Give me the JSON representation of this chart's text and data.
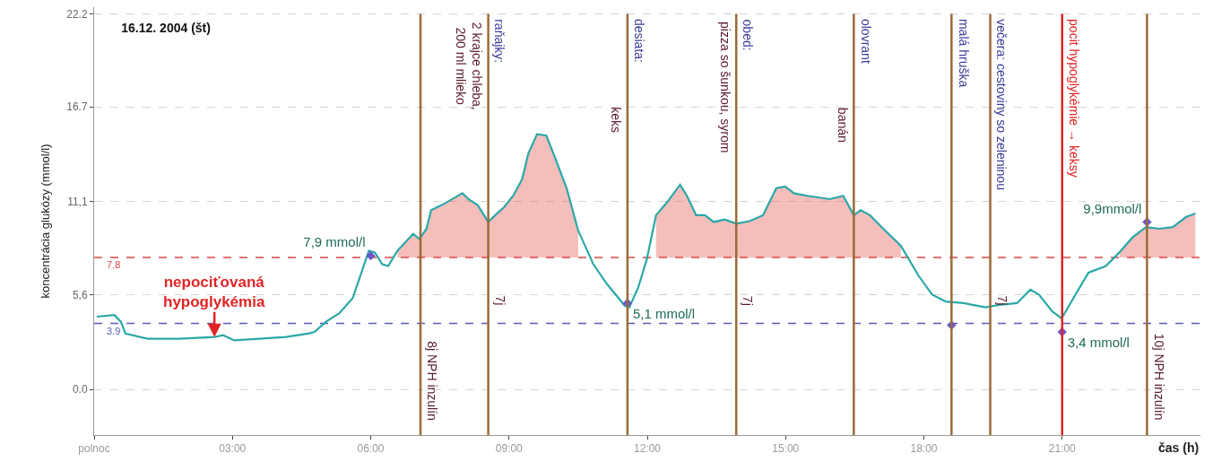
{
  "chart_data": {
    "type": "line",
    "title": "16.12. 2004 (št)",
    "xlabel": "čas (h)",
    "ylabel": "koncentrácia glukózy (mmol/l)",
    "xlim": [
      0,
      24
    ],
    "xticks": [
      {
        "value": 0,
        "label": "polnoc"
      },
      {
        "value": 3,
        "label": "03:00"
      },
      {
        "value": 6,
        "label": "06:00"
      },
      {
        "value": 9,
        "label": "09:00"
      },
      {
        "value": 12,
        "label": "12:00"
      },
      {
        "value": 15,
        "label": "15:00"
      },
      {
        "value": 18,
        "label": "18:00"
      },
      {
        "value": 21,
        "label": "21:00"
      }
    ],
    "ylim": [
      -2.7,
      22.6
    ],
    "yticks": [
      {
        "value": 0,
        "label": "0.0"
      },
      {
        "value": 5.6,
        "label": "5,6"
      },
      {
        "value": 11.1,
        "label": "11,1"
      },
      16.7,
      22.2
    ],
    "grid": "y",
    "marker": "none",
    "line_style": "solid",
    "series": [
      {
        "color": "#2aa8a8",
        "x": [
          0.06,
          0.44,
          0.58,
          0.68,
          1.16,
          1.84,
          2.61,
          2.8,
          3.04,
          3.58,
          4.16,
          4.64,
          4.78,
          5.03,
          5.32,
          5.61,
          5.86,
          5.96,
          6.09,
          6.25,
          6.38,
          6.58,
          6.77,
          6.92,
          7.06,
          7.21,
          7.31,
          7.54,
          7.83,
          7.99,
          8.12,
          8.32,
          8.55,
          8.7,
          8.9,
          9.09,
          9.28,
          9.42,
          9.61,
          9.81,
          10.0,
          10.25,
          10.5,
          10.83,
          11.12,
          11.51,
          11.61,
          11.8,
          11.99,
          12.19,
          12.44,
          12.71,
          12.86,
          13.06,
          13.25,
          13.44,
          13.68,
          13.93,
          14.22,
          14.51,
          14.8,
          14.99,
          15.18,
          15.47,
          15.96,
          16.25,
          16.48,
          16.63,
          16.83,
          17.12,
          17.5,
          17.89,
          18.18,
          18.47,
          18.86,
          19.34,
          19.63,
          20.02,
          20.31,
          20.5,
          20.79,
          20.99,
          21.18,
          21.57,
          21.95,
          22.24,
          22.53,
          22.82,
          23.11,
          23.4,
          23.69,
          23.89
        ],
        "values": [
          4.3,
          4.4,
          4.0,
          3.3,
          3.0,
          3.0,
          3.1,
          3.2,
          2.9,
          3.0,
          3.1,
          3.3,
          3.4,
          4.0,
          4.5,
          5.4,
          7.4,
          8.2,
          8.1,
          7.4,
          7.3,
          8.2,
          8.75,
          9.2,
          8.9,
          9.5,
          10.6,
          10.9,
          11.35,
          11.6,
          11.25,
          10.9,
          9.9,
          10.3,
          10.8,
          11.45,
          12.4,
          13.95,
          15.1,
          15.0,
          13.7,
          11.9,
          9.4,
          7.4,
          6.25,
          4.95,
          4.85,
          6.0,
          7.7,
          10.3,
          11.1,
          12.1,
          11.45,
          10.3,
          10.3,
          9.9,
          10.05,
          9.8,
          9.95,
          10.3,
          11.9,
          12.0,
          11.6,
          11.45,
          11.25,
          11.45,
          10.3,
          10.6,
          10.3,
          9.5,
          8.5,
          6.7,
          5.6,
          5.2,
          5.1,
          4.85,
          5.0,
          5.1,
          5.9,
          5.6,
          4.6,
          4.2,
          5.1,
          6.9,
          7.3,
          8.1,
          9.0,
          9.6,
          9.5,
          9.6,
          10.2,
          10.4
        ],
        "lower": [
          null,
          null,
          null,
          null,
          null,
          null,
          null,
          null,
          null,
          null,
          null,
          null,
          null,
          null,
          null,
          null,
          null,
          null,
          null,
          null,
          null,
          7.8,
          7.8,
          7.8,
          7.8,
          7.8,
          7.8,
          7.8,
          7.8,
          7.8,
          7.8,
          7.8,
          7.8,
          7.8,
          7.8,
          7.8,
          7.8,
          7.8,
          7.8,
          7.8,
          7.8,
          7.8,
          7.8,
          null,
          null,
          null,
          null,
          null,
          null,
          7.8,
          7.8,
          7.8,
          7.8,
          7.8,
          7.8,
          7.8,
          7.8,
          7.8,
          7.8,
          7.8,
          7.8,
          7.8,
          7.8,
          7.8,
          7.8,
          7.8,
          7.8,
          7.8,
          7.8,
          7.8,
          7.8,
          null,
          null,
          null,
          null,
          null,
          null,
          null,
          null,
          null,
          null,
          null,
          null,
          null,
          null,
          7.8,
          7.8,
          7.8,
          7.8,
          7.8,
          7.8,
          7.8
        ],
        "upper": [
          null,
          null,
          null,
          null,
          null,
          null,
          null,
          null,
          null,
          null,
          null,
          null,
          null,
          null,
          null,
          null,
          null,
          null,
          null,
          null,
          null,
          8.2,
          8.75,
          9.2,
          8.9,
          9.5,
          10.6,
          10.9,
          11.35,
          11.6,
          11.25,
          10.9,
          9.9,
          10.3,
          10.8,
          11.45,
          12.4,
          13.95,
          15.1,
          15.0,
          13.7,
          11.9,
          9.4,
          null,
          null,
          null,
          null,
          null,
          null,
          10.3,
          11.1,
          12.1,
          11.45,
          10.3,
          10.3,
          9.9,
          10.05,
          9.8,
          9.95,
          10.3,
          11.9,
          12.0,
          11.6,
          11.45,
          11.25,
          11.45,
          10.3,
          10.6,
          10.3,
          9.5,
          8.5,
          null,
          null,
          null,
          null,
          null,
          null,
          null,
          null,
          null,
          null,
          null,
          null,
          null,
          null,
          8.1,
          9.0,
          9.6,
          9.5,
          9.6,
          10.2,
          10.4
        ]
      },
      {
        "type": "scatter",
        "marker": "diamond",
        "color": "#6a5acd",
        "x": [
          6.0,
          11.57,
          18.6,
          21.0,
          22.84
        ],
        "values": [
          7.9,
          5.1,
          3.8,
          3.4,
          9.9
        ],
        "value_labels": [
          "7,9 mmol/l",
          "5,1 mmol/l",
          null,
          "3,4 mmol/l",
          "9,9mmol/l"
        ]
      }
    ],
    "ref_lines": [
      {
        "axis": "y",
        "value": 7.8,
        "label": "7.8",
        "color": "#d94848",
        "line_style": "dashed"
      },
      {
        "axis": "y",
        "value": 3.9,
        "label": "3.9",
        "color": "#5a5ab8",
        "line_style": "dashed"
      },
      {
        "axis": "x",
        "value": 7.08,
        "color": "#9a6a38"
      },
      {
        "axis": "x",
        "value": 8.55,
        "label": "raňajky:",
        "color": "#9a6a38"
      },
      {
        "axis": "x",
        "value": 11.57,
        "label": "desiata:",
        "color": "#9a6a38"
      },
      {
        "axis": "x",
        "value": 13.93,
        "label": "obed:",
        "color": "#9a6a38"
      },
      {
        "axis": "x",
        "value": 16.48,
        "label": "olovrant",
        "color": "#9a6a38"
      },
      {
        "axis": "x",
        "value": 18.6,
        "label": "malá hruška",
        "color": "#9a6a38"
      },
      {
        "axis": "x",
        "value": 19.44,
        "label": "večera: cestoviny so zeleninou",
        "color": "#9a6a38"
      },
      {
        "axis": "x",
        "value": 21.0,
        "label": "pocit hypoglykémie → keksy",
        "color": "#e02424"
      },
      {
        "axis": "x",
        "value": 22.84,
        "color": "#9a6a38"
      }
    ],
    "annotations": [
      "2 krajce chleba,\n200 ml mlieko",
      "8j NPH inzulín",
      "7j",
      "keks",
      "pizza so šunkou, syrom",
      "7j",
      "banán",
      "7j",
      "10j NPH inzulín",
      {
        "text": "nepociťovaná\nhypoglykémia",
        "x": 2.61,
        "y": 3.1
      }
    ]
  }
}
